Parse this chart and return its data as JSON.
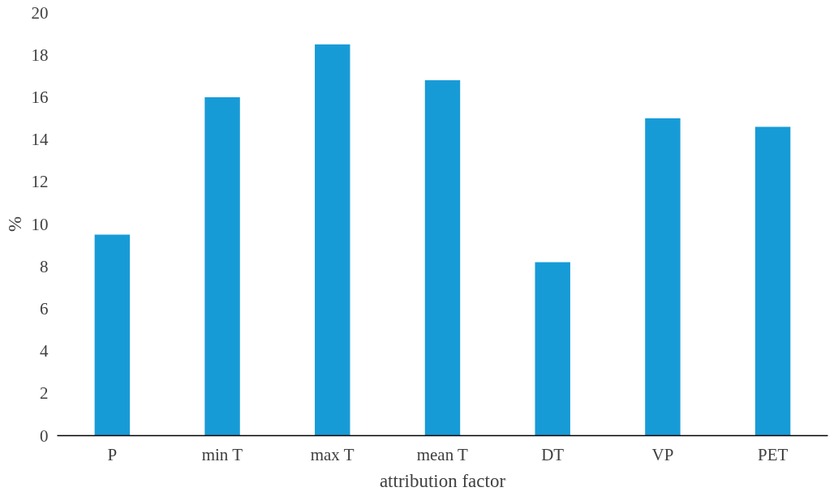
{
  "chart_data": {
    "type": "bar",
    "xlabel": "attribution factor",
    "ylabel": "%",
    "categories": [
      "P",
      "min T",
      "max T",
      "mean T",
      "DT",
      "VP",
      "PET"
    ],
    "values": [
      9.5,
      16.0,
      18.5,
      16.8,
      8.2,
      15.0,
      14.6
    ],
    "color": "#179bd7",
    "ylim": [
      0,
      20
    ],
    "yticks": [
      0,
      2,
      4,
      6,
      8,
      10,
      12,
      14,
      16,
      18,
      20
    ],
    "grid": false
  }
}
